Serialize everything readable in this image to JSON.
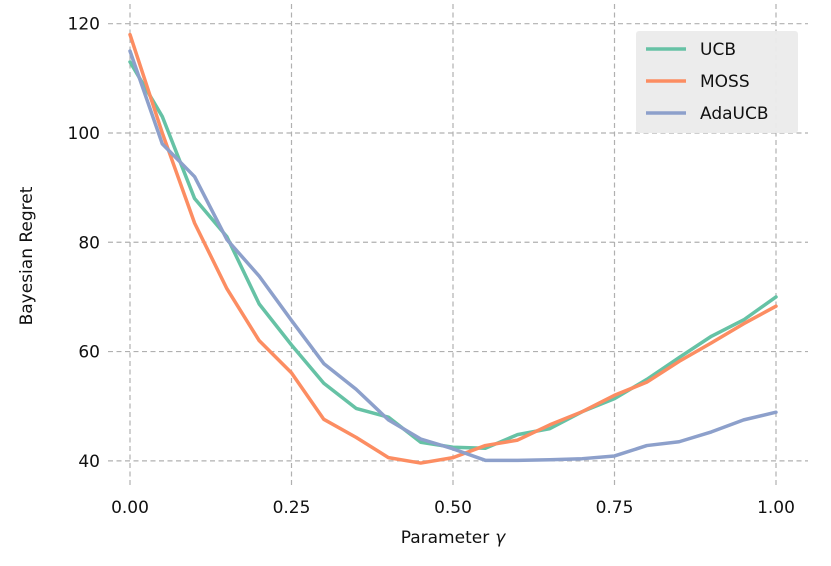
{
  "chart_data": {
    "type": "line",
    "title": "",
    "xlabel": "Parameter",
    "xlabel_symbol": "γ",
    "ylabel": "Bayesian Regret",
    "xlim": [
      0,
      1
    ],
    "ylim": [
      36.5,
      122.5
    ],
    "xticks": [
      0,
      0.25,
      0.5,
      0.75,
      1
    ],
    "xtick_labels": [
      "0.00",
      "0.25",
      "0.50",
      "0.75",
      "1.00"
    ],
    "yticks": [
      40,
      60,
      80,
      100,
      120
    ],
    "ytick_labels": [
      "40",
      "60",
      "80",
      "100",
      "120"
    ],
    "grid": true,
    "legend_position": "top-right",
    "x": [
      0,
      0.05,
      0.1,
      0.15,
      0.2,
      0.25,
      0.3,
      0.35,
      0.4,
      0.45,
      0.5,
      0.55,
      0.6,
      0.65,
      0.7,
      0.75,
      0.8,
      0.85,
      0.9,
      0.95,
      1.0
    ],
    "series": [
      {
        "name": "UCB",
        "color": "#66c2a5",
        "values": [
          113,
          103,
          88,
          81,
          68.7,
          61.2,
          54.2,
          49.6,
          48,
          43.4,
          42.5,
          42.3,
          44.8,
          45.9,
          49,
          51.4,
          54.9,
          58.9,
          62.8,
          65.8,
          70
        ]
      },
      {
        "name": "MOSS",
        "color": "#fc8d62",
        "values": [
          118,
          100,
          83.5,
          71.5,
          62,
          56.1,
          47.6,
          44.3,
          40.6,
          39.6,
          40.6,
          42.8,
          43.8,
          46.6,
          49,
          52,
          54.4,
          58.2,
          61.6,
          65.1,
          68.3
        ]
      },
      {
        "name": "AdaUCB",
        "color": "#8da0cb",
        "values": [
          115,
          98,
          92,
          80.5,
          73.8,
          65.7,
          57.8,
          53.1,
          47.5,
          44,
          42.2,
          40.1,
          40.1,
          40.2,
          40.4,
          40.9,
          42.8,
          43.5,
          45.3,
          47.5,
          48.9
        ]
      }
    ]
  }
}
